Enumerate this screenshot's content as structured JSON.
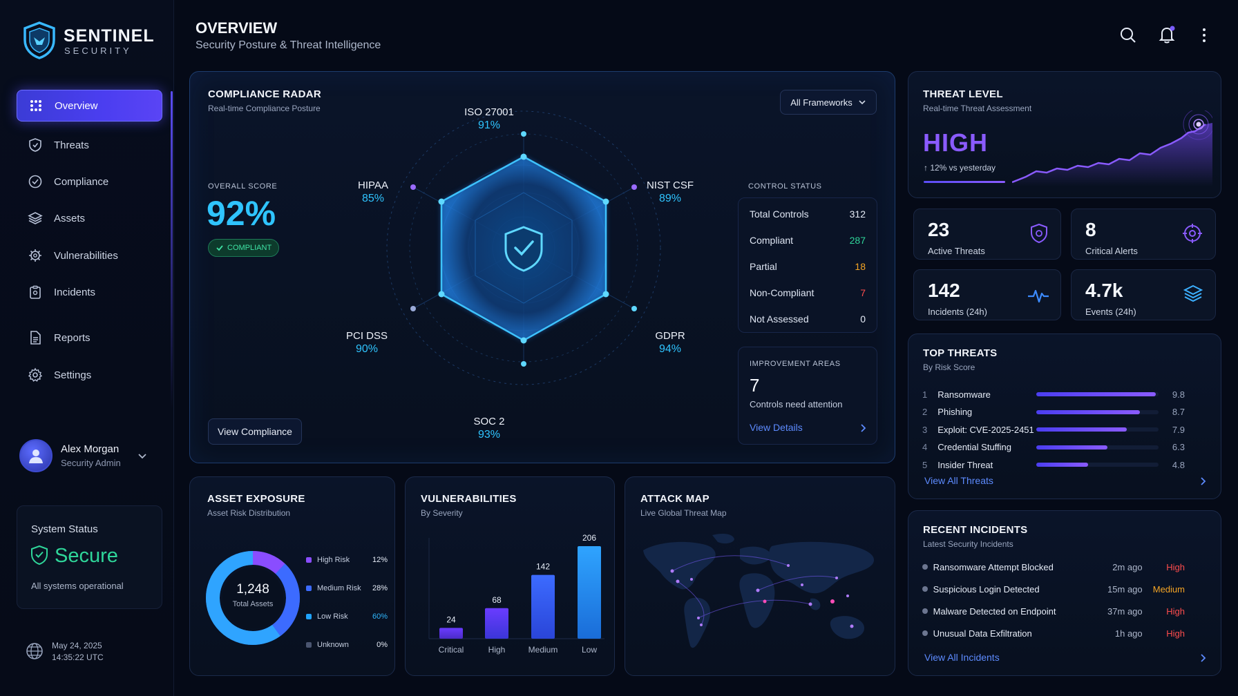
{
  "brand": {
    "name": "SENTINEL",
    "sub": "SECURITY"
  },
  "header": {
    "title": "OVERVIEW",
    "subtitle": "Security Posture & Threat Intelligence"
  },
  "nav": [
    {
      "label": "Overview",
      "icon": "grid-icon",
      "active": true
    },
    {
      "label": "Threats",
      "icon": "shield-icon"
    },
    {
      "label": "Compliance",
      "icon": "check-circle-icon"
    },
    {
      "label": "Assets",
      "icon": "layers-icon"
    },
    {
      "label": "Vulnerabilities",
      "icon": "bug-gear-icon"
    },
    {
      "label": "Incidents",
      "icon": "clipboard-icon"
    },
    {
      "label": "Reports",
      "icon": "document-icon"
    },
    {
      "label": "Settings",
      "icon": "gear-icon"
    }
  ],
  "user": {
    "name": "Alex Morgan",
    "role": "Security Admin"
  },
  "system_status": {
    "title": "System Status",
    "value": "Secure",
    "note": "All systems operational"
  },
  "clock": {
    "date": "May 24, 2025",
    "time": "14:35:22 UTC"
  },
  "compliance": {
    "title": "COMPLIANCE RADAR",
    "subtitle": "Real-time Compliance Posture",
    "filter": "All Frameworks",
    "overall_label": "OVERALL SCORE",
    "overall_value": "92%",
    "badge": "COMPLIANT",
    "button": "View Compliance",
    "frameworks": [
      {
        "name": "ISO 27001",
        "value": "91%"
      },
      {
        "name": "NIST CSF",
        "value": "89%"
      },
      {
        "name": "GDPR",
        "value": "94%"
      },
      {
        "name": "SOC 2",
        "value": "93%"
      },
      {
        "name": "PCI DSS",
        "value": "90%"
      },
      {
        "name": "HIPAA",
        "value": "85%"
      }
    ],
    "control_status": {
      "title": "CONTROL STATUS",
      "rows": [
        {
          "label": "Total Controls",
          "value": "312",
          "color": "#e6ecf7"
        },
        {
          "label": "Compliant",
          "value": "287",
          "color": "#2fd69a"
        },
        {
          "label": "Partial",
          "value": "18",
          "color": "#f5a524"
        },
        {
          "label": "Non-Compliant",
          "value": "7",
          "color": "#ff4d4d"
        },
        {
          "label": "Not Assessed",
          "value": "0",
          "color": "#e6ecf7"
        }
      ]
    },
    "improvement": {
      "title": "IMPROVEMENT AREAS",
      "value": "7",
      "note": "Controls need attention",
      "link": "View Details"
    }
  },
  "threat_level": {
    "title": "THREAT LEVEL",
    "subtitle": "Real-time Threat Assessment",
    "value": "HIGH",
    "change": "↑ 12% vs yesterday"
  },
  "stats": [
    {
      "value": "23",
      "label": "Active Threats",
      "icon": "shield-target-icon"
    },
    {
      "value": "8",
      "label": "Critical Alerts",
      "icon": "crosshair-icon"
    },
    {
      "value": "142",
      "label": "Incidents (24h)",
      "icon": "pulse-icon"
    },
    {
      "value": "4.7k",
      "label": "Events (24h)",
      "icon": "layers-icon"
    }
  ],
  "top_threats": {
    "title": "TOP THREATS",
    "subtitle": "By Risk Score",
    "link": "View All Threats",
    "rows": [
      {
        "rank": "1",
        "name": "Ransomware",
        "score": "9.8",
        "fill": 0.98
      },
      {
        "rank": "2",
        "name": "Phishing",
        "score": "8.7",
        "fill": 0.85
      },
      {
        "rank": "3",
        "name": "Exploit: CVE-2025-2451",
        "score": "7.9",
        "fill": 0.74
      },
      {
        "rank": "4",
        "name": "Credential Stuffing",
        "score": "6.3",
        "fill": 0.58
      },
      {
        "rank": "5",
        "name": "Insider Threat",
        "score": "4.8",
        "fill": 0.42
      }
    ]
  },
  "recent_incidents": {
    "title": "RECENT INCIDENTS",
    "subtitle": "Latest Security Incidents",
    "link": "View All Incidents",
    "rows": [
      {
        "name": "Ransomware Attempt Blocked",
        "time": "2m ago",
        "severity": "High",
        "color": "#ff4d4d"
      },
      {
        "name": "Suspicious Login Detected",
        "time": "15m ago",
        "severity": "Medium",
        "color": "#f5a524"
      },
      {
        "name": "Malware Detected on Endpoint",
        "time": "37m ago",
        "severity": "High",
        "color": "#ff4d4d"
      },
      {
        "name": "Unusual Data Exfiltration",
        "time": "1h ago",
        "severity": "High",
        "color": "#ff4d4d"
      }
    ]
  },
  "asset_exposure": {
    "title": "ASSET EXPOSURE",
    "subtitle": "Asset Risk Distribution",
    "center_value": "1,248",
    "center_label": "Total Assets",
    "legend": [
      {
        "label": "High Risk",
        "value": "12%",
        "color": "#8a4dff"
      },
      {
        "label": "Medium Risk",
        "value": "28%",
        "color": "#3c6bff"
      },
      {
        "label": "Low Risk",
        "value": "60%",
        "color": "#1fa3ff",
        "value_color": "#2fb8ff"
      },
      {
        "label": "Unknown",
        "value": "0%",
        "color": "#4a5570"
      }
    ]
  },
  "vulnerabilities": {
    "title": "VULNERABILITIES",
    "subtitle": "By Severity"
  },
  "attack_map": {
    "title": "ATTACK MAP",
    "subtitle": "Live Global Threat Map"
  },
  "chart_data": {
    "type": "bar",
    "categories": [
      "Critical",
      "High",
      "Medium",
      "Low"
    ],
    "values": [
      24,
      68,
      142,
      206
    ],
    "title": "VULNERABILITIES",
    "subtitle": "By Severity"
  }
}
